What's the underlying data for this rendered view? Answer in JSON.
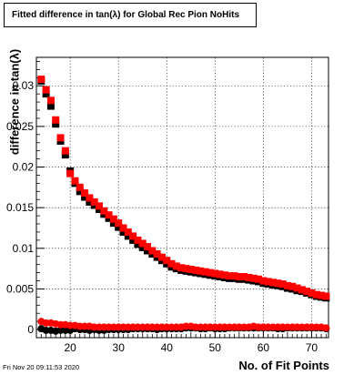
{
  "chart_data": {
    "type": "scatter",
    "title": "Fitted difference in tan(λ) for Global Rec Pion NoHits",
    "xlabel": "No. of Fit Points",
    "ylabel": "difference in tan(λ)",
    "xlim": [
      13,
      73.5
    ],
    "ylim": [
      -0.001,
      0.0335
    ],
    "grid": true,
    "x_ticks": [
      {
        "value": 20,
        "label": "20"
      },
      {
        "value": 30,
        "label": "30"
      },
      {
        "value": 40,
        "label": "40"
      },
      {
        "value": 50,
        "label": "50"
      },
      {
        "value": 60,
        "label": "60"
      },
      {
        "value": 70,
        "label": "70"
      }
    ],
    "y_ticks": [
      {
        "value": 0,
        "label": "0"
      },
      {
        "value": 0.005,
        "label": "0.005"
      },
      {
        "value": 0.01,
        "label": "0.01"
      },
      {
        "value": 0.015,
        "label": "0.015"
      },
      {
        "value": 0.02,
        "label": "0.02"
      },
      {
        "value": 0.025,
        "label": "0.025"
      },
      {
        "value": 0.03,
        "label": "0.03"
      }
    ],
    "series": [
      {
        "color": "#000000",
        "marker": "square",
        "x": [
          14,
          15,
          16,
          17,
          18,
          19,
          20,
          21,
          22,
          23,
          24,
          25,
          26,
          27,
          28,
          29,
          30,
          31,
          32,
          33,
          34,
          35,
          36,
          37,
          38,
          39,
          40,
          41,
          42,
          43,
          44,
          45,
          46,
          47,
          48,
          49,
          50,
          51,
          52,
          53,
          54,
          55,
          56,
          57,
          58,
          59,
          60,
          61,
          62,
          63,
          64,
          65,
          66,
          67,
          68,
          69,
          70,
          71,
          72,
          73
        ],
        "y": [
          0.0306,
          0.029,
          0.0275,
          0.0253,
          0.0232,
          0.0215,
          0.0195,
          0.018,
          0.017,
          0.0163,
          0.0157,
          0.0153,
          0.0148,
          0.0142,
          0.0137,
          0.0131,
          0.0126,
          0.012,
          0.0115,
          0.011,
          0.0105,
          0.0101,
          0.0097,
          0.0093,
          0.0089,
          0.0085,
          0.0081,
          0.0077,
          0.0075,
          0.0073,
          0.0072,
          0.0071,
          0.007,
          0.0069,
          0.0068,
          0.0067,
          0.0066,
          0.0065,
          0.0064,
          0.0063,
          0.0063,
          0.0062,
          0.0062,
          0.0061,
          0.006,
          0.0059,
          0.0057,
          0.0056,
          0.0055,
          0.0054,
          0.0053,
          0.0051,
          0.005,
          0.0048,
          0.0047,
          0.0045,
          0.0043,
          0.0041,
          0.004,
          0.0039
        ]
      },
      {
        "color": "#ff0000",
        "marker": "square",
        "x": [
          14,
          15,
          16,
          17,
          18,
          19,
          20,
          21,
          22,
          23,
          24,
          25,
          26,
          27,
          28,
          29,
          30,
          31,
          32,
          33,
          34,
          35,
          36,
          37,
          38,
          39,
          40,
          41,
          42,
          43,
          44,
          45,
          46,
          47,
          48,
          49,
          50,
          51,
          52,
          53,
          54,
          55,
          56,
          57,
          58,
          59,
          60,
          61,
          62,
          63,
          64,
          65,
          66,
          67,
          68,
          69,
          70,
          71,
          72,
          73
        ],
        "y": [
          0.0308,
          0.0295,
          0.0282,
          0.0258,
          0.0236,
          0.022,
          0.0192,
          0.0183,
          0.0175,
          0.0168,
          0.0162,
          0.0157,
          0.0152,
          0.0146,
          0.0141,
          0.0136,
          0.0131,
          0.0125,
          0.012,
          0.0115,
          0.011,
          0.0106,
          0.0102,
          0.0097,
          0.0093,
          0.0089,
          0.0085,
          0.0081,
          0.0078,
          0.0076,
          0.0075,
          0.0074,
          0.0073,
          0.0072,
          0.0071,
          0.007,
          0.0069,
          0.0068,
          0.0067,
          0.0066,
          0.0066,
          0.0065,
          0.0065,
          0.0064,
          0.0063,
          0.0062,
          0.006,
          0.0059,
          0.0058,
          0.0057,
          0.0056,
          0.0054,
          0.0053,
          0.0051,
          0.0049,
          0.0047,
          0.0045,
          0.0043,
          0.0042,
          0.0041
        ]
      },
      {
        "color": "#000000",
        "marker": "circle",
        "x": [
          14,
          15,
          16,
          17,
          18,
          19,
          20,
          21,
          22,
          23,
          24,
          25,
          26,
          27,
          28,
          29,
          30,
          31,
          32,
          33,
          34,
          35,
          36,
          37,
          38,
          39,
          40,
          41,
          42,
          43,
          44,
          45,
          46,
          47,
          48,
          49,
          50,
          51,
          52,
          53,
          54,
          55,
          56,
          57,
          58,
          59,
          60,
          61,
          62,
          63,
          64,
          65,
          66,
          67,
          68,
          69,
          70,
          71,
          72,
          73
        ],
        "y": [
          0.0001,
          -0.0001,
          -0.0001,
          -0.0002,
          -0.0001,
          -0.0001,
          -0.0001,
          0.0001,
          0.0,
          0.0,
          -0.0001,
          0.0,
          -0.0001,
          -0.0001,
          0.0,
          0.0,
          0.0,
          0.0,
          0.0,
          0.0001,
          0.0001,
          0.0001,
          0.0001,
          0.0001,
          0.0,
          0.0001,
          0.0001,
          0.0001,
          0.0001,
          0.0001,
          0.0002,
          0.0002,
          0.0002,
          0.0001,
          0.0001,
          0.0002,
          0.0001,
          0.0001,
          0.0001,
          0.0002,
          0.0002,
          0.0002,
          0.0002,
          0.0002,
          0.0002,
          0.0002,
          0.0002,
          0.0002,
          0.0002,
          0.0001,
          0.0001,
          0.0002,
          0.0002,
          0.0002,
          0.0002,
          0.0002,
          0.0002,
          0.0002,
          0.0002,
          0.0001
        ]
      },
      {
        "color": "#ff0000",
        "marker": "circle",
        "x": [
          14,
          15,
          16,
          17,
          18,
          19,
          20,
          21,
          22,
          23,
          24,
          25,
          26,
          27,
          28,
          29,
          30,
          31,
          32,
          33,
          34,
          35,
          36,
          37,
          38,
          39,
          40,
          41,
          42,
          43,
          44,
          45,
          46,
          47,
          48,
          49,
          50,
          51,
          52,
          53,
          54,
          55,
          56,
          57,
          58,
          59,
          60,
          61,
          62,
          63,
          64,
          65,
          66,
          67,
          68,
          69,
          70,
          71,
          72,
          73
        ],
        "y": [
          0.001,
          0.0008,
          0.0008,
          0.0007,
          0.0006,
          0.0006,
          0.0005,
          0.0005,
          0.0004,
          0.0004,
          0.0004,
          0.0003,
          0.0003,
          0.0003,
          0.0003,
          0.0003,
          0.0003,
          0.0003,
          0.0003,
          0.0003,
          0.0003,
          0.0003,
          0.0003,
          0.0003,
          0.0003,
          0.0003,
          0.0003,
          0.0003,
          0.0003,
          0.0003,
          0.0004,
          0.0004,
          0.0003,
          0.0003,
          0.0003,
          0.0003,
          0.0003,
          0.0003,
          0.0003,
          0.0003,
          0.0003,
          0.0003,
          0.0003,
          0.0003,
          0.0004,
          0.0003,
          0.0003,
          0.0003,
          0.0003,
          0.0003,
          0.0003,
          0.0003,
          0.0003,
          0.0003,
          0.0003,
          0.0003,
          0.0003,
          0.0003,
          0.0003,
          0.0002
        ]
      }
    ]
  },
  "footer": {
    "datetime": "Fri Nov 20 09:11:53 2020"
  }
}
